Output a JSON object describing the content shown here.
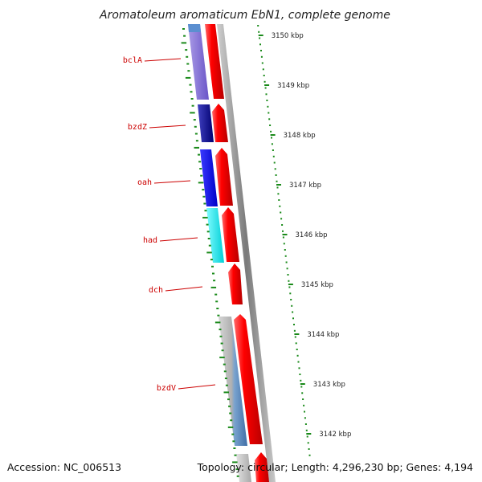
{
  "title": "Aromatoleum aromaticum EbN1, complete genome",
  "accession": "Accession: NC_006513",
  "topology": "Topology: circular; Length: 4,296,230 bp; Genes: 4,194",
  "kbp_labels": [
    "3150 kbp",
    "3149 kbp",
    "3148 kbp",
    "3147 kbp",
    "3146 kbp",
    "3145 kbp",
    "3144 kbp",
    "3143 kbp",
    "3142 kbp"
  ],
  "gene_labels": [
    "bclA",
    "bzdZ",
    "oah",
    "had",
    "dch",
    "bzdV"
  ],
  "colors": {
    "strand_arrow": "#ff0000",
    "inner_tick": "#1a8a1a",
    "outer_tick": "#1a8a1a",
    "label": "#cc0000",
    "backbone": "#9a9a9a"
  }
}
